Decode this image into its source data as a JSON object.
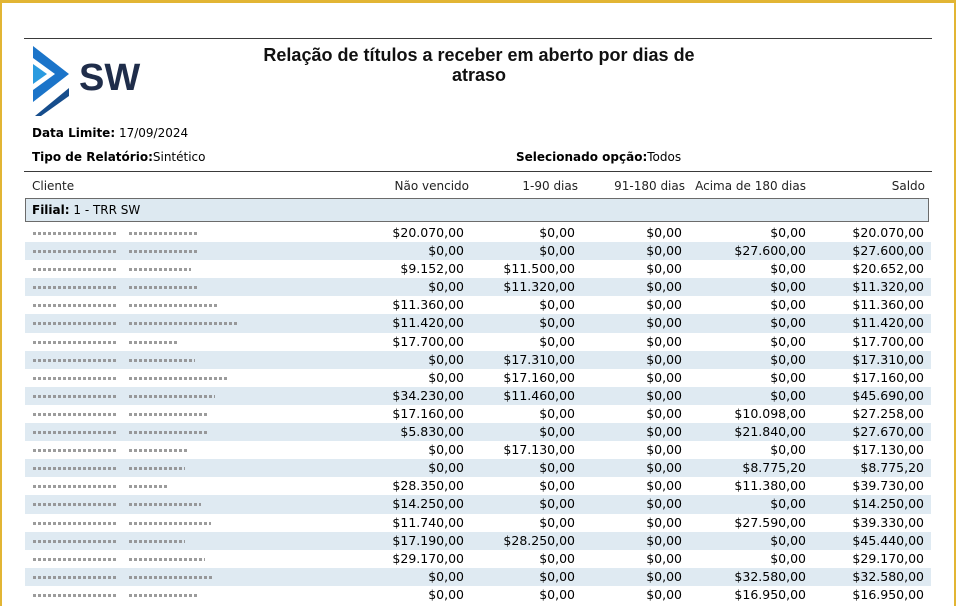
{
  "report": {
    "logo_text": "SW",
    "title": "Relação de títulos a receber em aberto por dias de atraso",
    "data_limite_label": "Data Limite:",
    "data_limite_value": "17/09/2024",
    "tipo_label": "Tipo de Relatório:",
    "tipo_value": "Sintético",
    "selecionado_label": "Selecionado opção:",
    "selecionado_value": "Todos"
  },
  "columns": {
    "cliente": "Cliente",
    "nao_vencido": "Não vencido",
    "d1_90": "1-90 dias",
    "d91_180": "91-180 dias",
    "acima_180": "Acima de 180 dias",
    "saldo": "Saldo"
  },
  "filial": {
    "label": "Filial:",
    "value": "1 - TRR SW"
  },
  "rows": [
    {
      "nao_vencido": "$20.070,00",
      "d1_90": "$0,00",
      "d91_180": "$0,00",
      "acima_180": "$0,00",
      "saldo": "$20.070,00",
      "name_len": 68
    },
    {
      "nao_vencido": "$0,00",
      "d1_90": "$0,00",
      "d91_180": "$0,00",
      "acima_180": "$27.600,00",
      "saldo": "$27.600,00",
      "name_len": 68
    },
    {
      "nao_vencido": "$9.152,00",
      "d1_90": "$11.500,00",
      "d91_180": "$0,00",
      "acima_180": "$0,00",
      "saldo": "$20.652,00",
      "name_len": 62
    },
    {
      "nao_vencido": "$0,00",
      "d1_90": "$11.320,00",
      "d91_180": "$0,00",
      "acima_180": "$0,00",
      "saldo": "$11.320,00",
      "name_len": 70
    },
    {
      "nao_vencido": "$11.360,00",
      "d1_90": "$0,00",
      "d91_180": "$0,00",
      "acima_180": "$0,00",
      "saldo": "$11.360,00",
      "name_len": 88
    },
    {
      "nao_vencido": "$11.420,00",
      "d1_90": "$0,00",
      "d91_180": "$0,00",
      "acima_180": "$0,00",
      "saldo": "$11.420,00",
      "name_len": 108
    },
    {
      "nao_vencido": "$17.700,00",
      "d1_90": "$0,00",
      "d91_180": "$0,00",
      "acima_180": "$0,00",
      "saldo": "$17.700,00",
      "name_len": 48
    },
    {
      "nao_vencido": "$0,00",
      "d1_90": "$17.310,00",
      "d91_180": "$0,00",
      "acima_180": "$0,00",
      "saldo": "$17.310,00",
      "name_len": 66
    },
    {
      "nao_vencido": "$0,00",
      "d1_90": "$17.160,00",
      "d91_180": "$0,00",
      "acima_180": "$0,00",
      "saldo": "$17.160,00",
      "name_len": 100
    },
    {
      "nao_vencido": "$34.230,00",
      "d1_90": "$11.460,00",
      "d91_180": "$0,00",
      "acima_180": "$0,00",
      "saldo": "$45.690,00",
      "name_len": 86
    },
    {
      "nao_vencido": "$17.160,00",
      "d1_90": "$0,00",
      "d91_180": "$0,00",
      "acima_180": "$10.098,00",
      "saldo": "$27.258,00",
      "name_len": 78
    },
    {
      "nao_vencido": "$5.830,00",
      "d1_90": "$0,00",
      "d91_180": "$0,00",
      "acima_180": "$21.840,00",
      "saldo": "$27.670,00",
      "name_len": 80
    },
    {
      "nao_vencido": "$0,00",
      "d1_90": "$17.130,00",
      "d91_180": "$0,00",
      "acima_180": "$0,00",
      "saldo": "$17.130,00",
      "name_len": 60
    },
    {
      "nao_vencido": "$0,00",
      "d1_90": "$0,00",
      "d91_180": "$0,00",
      "acima_180": "$8.775,20",
      "saldo": "$8.775,20",
      "name_len": 56
    },
    {
      "nao_vencido": "$28.350,00",
      "d1_90": "$0,00",
      "d91_180": "$0,00",
      "acima_180": "$11.380,00",
      "saldo": "$39.730,00",
      "name_len": 38
    },
    {
      "nao_vencido": "$14.250,00",
      "d1_90": "$0,00",
      "d91_180": "$0,00",
      "acima_180": "$0,00",
      "saldo": "$14.250,00",
      "name_len": 72
    },
    {
      "nao_vencido": "$11.740,00",
      "d1_90": "$0,00",
      "d91_180": "$0,00",
      "acima_180": "$27.590,00",
      "saldo": "$39.330,00",
      "name_len": 82
    },
    {
      "nao_vencido": "$17.190,00",
      "d1_90": "$28.250,00",
      "d91_180": "$0,00",
      "acima_180": "$0,00",
      "saldo": "$45.440,00",
      "name_len": 56
    },
    {
      "nao_vencido": "$29.170,00",
      "d1_90": "$0,00",
      "d91_180": "$0,00",
      "acima_180": "$0,00",
      "saldo": "$29.170,00",
      "name_len": 76
    },
    {
      "nao_vencido": "$0,00",
      "d1_90": "$0,00",
      "d91_180": "$0,00",
      "acima_180": "$32.580,00",
      "saldo": "$32.580,00",
      "name_len": 84
    },
    {
      "nao_vencido": "$0,00",
      "d1_90": "$0,00",
      "d91_180": "$0,00",
      "acima_180": "$16.950,00",
      "saldo": "$16.950,00",
      "name_len": 70
    }
  ]
}
